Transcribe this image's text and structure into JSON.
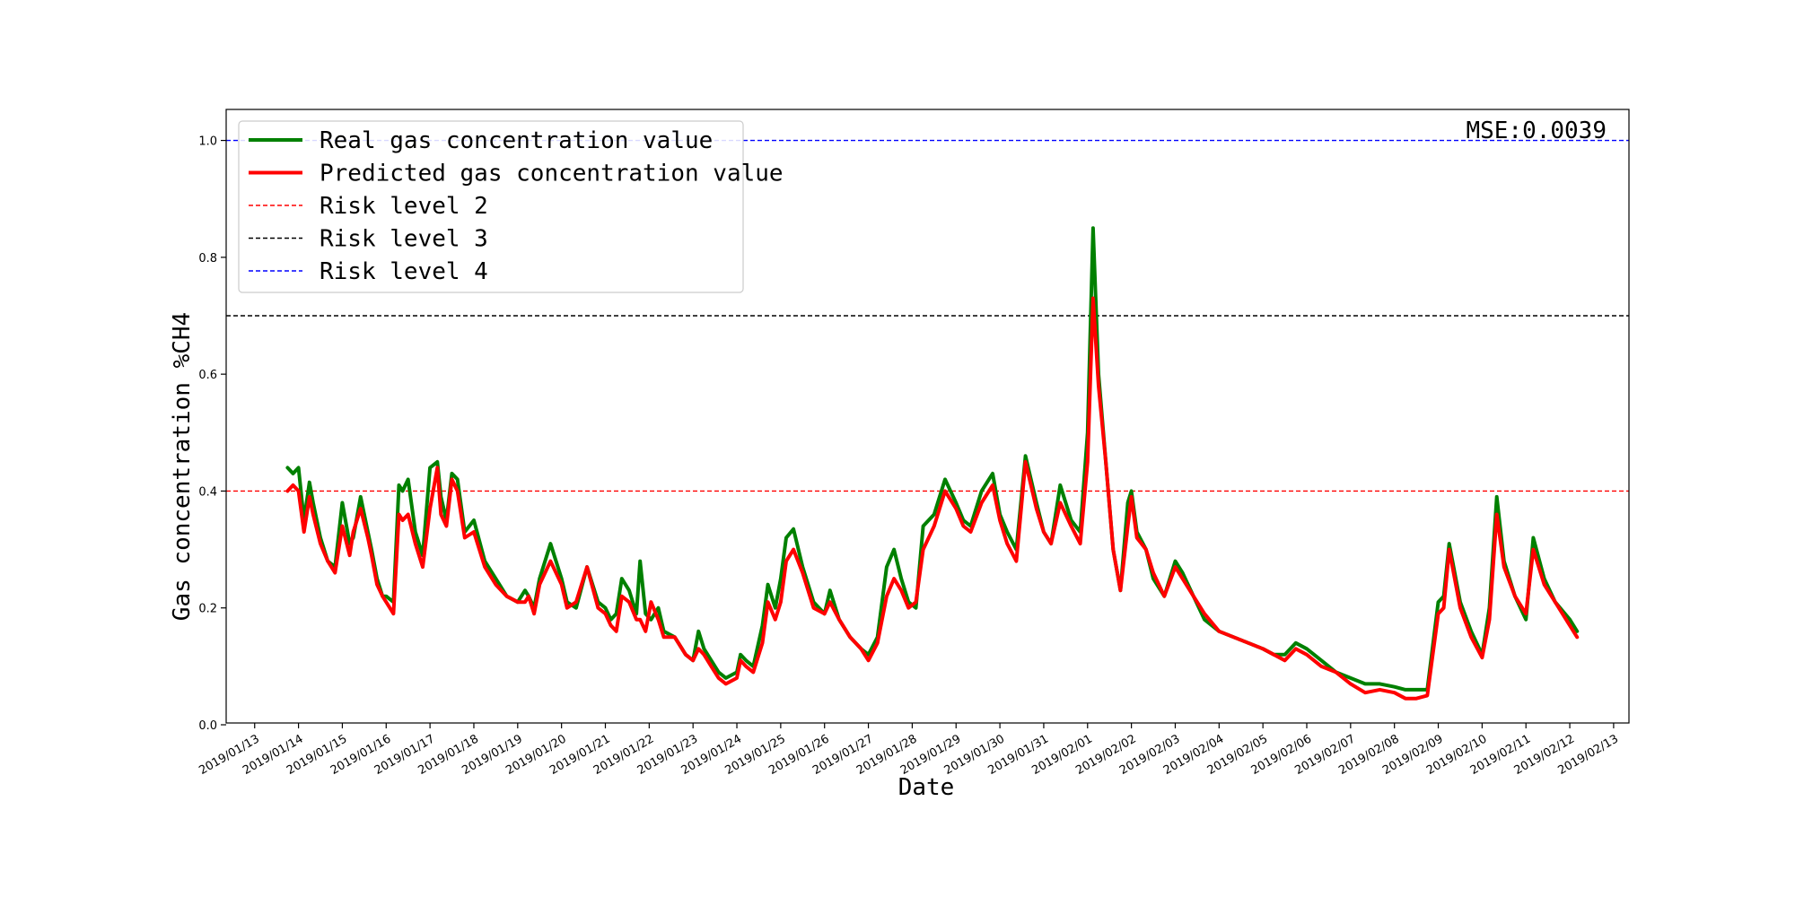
{
  "chart_data": {
    "type": "line",
    "xlabel": "Date",
    "ylabel": "Gas concentration %CH4",
    "annotation": "MSE:0.0039",
    "xlim": [
      "2019/01/13",
      "2019/02/13"
    ],
    "ylim": [
      0.0,
      1.05
    ],
    "y_ticks": [
      "0.0",
      "0.2",
      "0.4",
      "0.6",
      "0.8",
      "1.0"
    ],
    "x_ticks": [
      "2019/01/13",
      "2019/01/14",
      "2019/01/15",
      "2019/01/16",
      "2019/01/17",
      "2019/01/18",
      "2019/01/19",
      "2019/01/20",
      "2019/01/21",
      "2019/01/22",
      "2019/01/23",
      "2019/01/24",
      "2019/01/25",
      "2019/01/26",
      "2019/01/27",
      "2019/01/28",
      "2019/01/29",
      "2019/01/30",
      "2019/01/31",
      "2019/02/01",
      "2019/02/02",
      "2019/02/03",
      "2019/02/04",
      "2019/02/05",
      "2019/02/06",
      "2019/02/07",
      "2019/02/08",
      "2019/02/09",
      "2019/02/10",
      "2019/02/11",
      "2019/02/12",
      "2019/02/13"
    ],
    "grid": false,
    "legend_position": "upper-left",
    "thresholds": [
      {
        "name": "Risk level 2",
        "value": 0.4,
        "color": "#ff0000"
      },
      {
        "name": "Risk level 3",
        "value": 0.7,
        "color": "#000000"
      },
      {
        "name": "Risk level 4",
        "value": 1.0,
        "color": "#0000ff"
      }
    ],
    "series": [
      {
        "name": "Real gas concentration value",
        "color": "#008000",
        "x": [
          "2019/01/13 18:00",
          "2019/01/13 21:00",
          "2019/01/14 00:00",
          "2019/01/14 03:00",
          "2019/01/14 06:00",
          "2019/01/14 08:00",
          "2019/01/14 12:00",
          "2019/01/14 16:00",
          "2019/01/14 20:00",
          "2019/01/15 00:00",
          "2019/01/15 04:00",
          "2019/01/15 06:00",
          "2019/01/15 10:00",
          "2019/01/15 14:00",
          "2019/01/15 16:00",
          "2019/01/15 19:00",
          "2019/01/15 22:00",
          "2019/01/16 00:00",
          "2019/01/16 04:00",
          "2019/01/16 07:00",
          "2019/01/16 09:00",
          "2019/01/16 12:00",
          "2019/01/16 16:00",
          "2019/01/16 20:00",
          "2019/01/17 00:00",
          "2019/01/17 04:00",
          "2019/01/17 06:00",
          "2019/01/17 09:00",
          "2019/01/17 12:00",
          "2019/01/17 15:00",
          "2019/01/17 19:00",
          "2019/01/18 00:00",
          "2019/01/18 06:00",
          "2019/01/18 12:00",
          "2019/01/18 18:00",
          "2019/01/19 00:00",
          "2019/01/19 04:00",
          "2019/01/19 06:00",
          "2019/01/19 09:00",
          "2019/01/19 12:00",
          "2019/01/19 18:00",
          "2019/01/20 00:00",
          "2019/01/20 03:00",
          "2019/01/20 08:00",
          "2019/01/20 14:00",
          "2019/01/20 20:00",
          "2019/01/21 00:00",
          "2019/01/21 03:00",
          "2019/01/21 06:00",
          "2019/01/21 09:00",
          "2019/01/21 13:00",
          "2019/01/21 17:00",
          "2019/01/21 19:00",
          "2019/01/21 22:00",
          "2019/01/22 01:00",
          "2019/01/22 05:00",
          "2019/01/22 08:00",
          "2019/01/22 14:00",
          "2019/01/22 20:00",
          "2019/01/23 00:00",
          "2019/01/23 03:00",
          "2019/01/23 06:00",
          "2019/01/23 10:00",
          "2019/01/23 14:00",
          "2019/01/23 18:00",
          "2019/01/24 00:00",
          "2019/01/24 02:00",
          "2019/01/24 05:00",
          "2019/01/24 09:00",
          "2019/01/24 14:00",
          "2019/01/24 17:00",
          "2019/01/24 21:00",
          "2019/01/25 00:00",
          "2019/01/25 03:00",
          "2019/01/25 07:00",
          "2019/01/25 12:00",
          "2019/01/25 18:00",
          "2019/01/26 00:00",
          "2019/01/26 03:00",
          "2019/01/26 08:00",
          "2019/01/26 14:00",
          "2019/01/26 20:00",
          "2019/01/27 00:00",
          "2019/01/27 05:00",
          "2019/01/27 10:00",
          "2019/01/27 14:00",
          "2019/01/27 18:00",
          "2019/01/27 22:00",
          "2019/01/28 02:00",
          "2019/01/28 06:00",
          "2019/01/28 12:00",
          "2019/01/28 18:00",
          "2019/01/29 00:00",
          "2019/01/29 04:00",
          "2019/01/29 08:00",
          "2019/01/29 14:00",
          "2019/01/29 20:00",
          "2019/01/30 00:00",
          "2019/01/30 04:00",
          "2019/01/30 09:00",
          "2019/01/30 14:00",
          "2019/01/30 20:00",
          "2019/01/31 00:00",
          "2019/01/31 04:00",
          "2019/01/31 09:00",
          "2019/01/31 15:00",
          "2019/01/31 20:00",
          "2019/02/01 00:00",
          "2019/02/01 03:00",
          "2019/02/01 06:00",
          "2019/02/01 10:00",
          "2019/02/01 14:00",
          "2019/02/01 18:00",
          "2019/02/01 22:00",
          "2019/02/02 00:00",
          "2019/02/02 03:00",
          "2019/02/02 08:00",
          "2019/02/02 12:00",
          "2019/02/02 18:00",
          "2019/02/03 00:00",
          "2019/02/03 04:00",
          "2019/02/03 10:00",
          "2019/02/03 16:00",
          "2019/02/04 00:00",
          "2019/02/04 08:00",
          "2019/02/04 16:00",
          "2019/02/05 00:00",
          "2019/02/05 06:00",
          "2019/02/05 12:00",
          "2019/02/05 18:00",
          "2019/02/06 00:00",
          "2019/02/06 08:00",
          "2019/02/06 16:00",
          "2019/02/07 00:00",
          "2019/02/07 08:00",
          "2019/02/07 16:00",
          "2019/02/08 00:00",
          "2019/02/08 06:00",
          "2019/02/08 12:00",
          "2019/02/08 18:00",
          "2019/02/09 00:00",
          "2019/02/09 03:00",
          "2019/02/09 06:00",
          "2019/02/09 12:00",
          "2019/02/09 18:00",
          "2019/02/10 00:00",
          "2019/02/10 04:00",
          "2019/02/10 08:00",
          "2019/02/10 12:00",
          "2019/02/10 18:00",
          "2019/02/11 00:00",
          "2019/02/11 04:00",
          "2019/02/11 10:00",
          "2019/02/11 16:00",
          "2019/02/12 00:00",
          "2019/02/12 04:00"
        ],
        "y": [
          0.44,
          0.43,
          0.44,
          0.35,
          0.415,
          0.38,
          0.32,
          0.28,
          0.27,
          0.38,
          0.31,
          0.32,
          0.39,
          0.33,
          0.3,
          0.25,
          0.22,
          0.22,
          0.21,
          0.41,
          0.4,
          0.42,
          0.33,
          0.29,
          0.44,
          0.45,
          0.39,
          0.35,
          0.43,
          0.42,
          0.33,
          0.35,
          0.28,
          0.25,
          0.22,
          0.21,
          0.23,
          0.22,
          0.2,
          0.25,
          0.31,
          0.25,
          0.21,
          0.2,
          0.27,
          0.21,
          0.2,
          0.18,
          0.19,
          0.25,
          0.23,
          0.19,
          0.28,
          0.19,
          0.18,
          0.2,
          0.16,
          0.15,
          0.12,
          0.11,
          0.16,
          0.13,
          0.11,
          0.09,
          0.08,
          0.09,
          0.12,
          0.11,
          0.1,
          0.17,
          0.24,
          0.2,
          0.25,
          0.32,
          0.335,
          0.27,
          0.21,
          0.19,
          0.23,
          0.18,
          0.15,
          0.13,
          0.12,
          0.15,
          0.27,
          0.3,
          0.25,
          0.21,
          0.2,
          0.34,
          0.36,
          0.42,
          0.38,
          0.35,
          0.34,
          0.4,
          0.43,
          0.36,
          0.33,
          0.3,
          0.46,
          0.38,
          0.33,
          0.31,
          0.41,
          0.35,
          0.33,
          0.5,
          0.85,
          0.6,
          0.45,
          0.3,
          0.23,
          0.38,
          0.4,
          0.33,
          0.3,
          0.25,
          0.22,
          0.28,
          0.26,
          0.22,
          0.18,
          0.16,
          0.15,
          0.14,
          0.13,
          0.12,
          0.12,
          0.14,
          0.13,
          0.11,
          0.09,
          0.08,
          0.07,
          0.07,
          0.065,
          0.06,
          0.06,
          0.06,
          0.21,
          0.22,
          0.31,
          0.21,
          0.16,
          0.12,
          0.2,
          0.39,
          0.28,
          0.22,
          0.18,
          0.32,
          0.25,
          0.21,
          0.18,
          0.16
        ]
      },
      {
        "name": "Predicted gas concentration value",
        "color": "#ff0000",
        "x": [
          "2019/01/13 18:00",
          "2019/01/13 21:00",
          "2019/01/14 00:00",
          "2019/01/14 03:00",
          "2019/01/14 06:00",
          "2019/01/14 08:00",
          "2019/01/14 12:00",
          "2019/01/14 16:00",
          "2019/01/14 20:00",
          "2019/01/15 00:00",
          "2019/01/15 04:00",
          "2019/01/15 06:00",
          "2019/01/15 10:00",
          "2019/01/15 14:00",
          "2019/01/15 16:00",
          "2019/01/15 19:00",
          "2019/01/15 22:00",
          "2019/01/16 00:00",
          "2019/01/16 04:00",
          "2019/01/16 07:00",
          "2019/01/16 09:00",
          "2019/01/16 12:00",
          "2019/01/16 16:00",
          "2019/01/16 20:00",
          "2019/01/17 00:00",
          "2019/01/17 04:00",
          "2019/01/17 06:00",
          "2019/01/17 09:00",
          "2019/01/17 12:00",
          "2019/01/17 15:00",
          "2019/01/17 19:00",
          "2019/01/18 00:00",
          "2019/01/18 06:00",
          "2019/01/18 12:00",
          "2019/01/18 18:00",
          "2019/01/19 00:00",
          "2019/01/19 04:00",
          "2019/01/19 06:00",
          "2019/01/19 09:00",
          "2019/01/19 12:00",
          "2019/01/19 18:00",
          "2019/01/20 00:00",
          "2019/01/20 03:00",
          "2019/01/20 08:00",
          "2019/01/20 14:00",
          "2019/01/20 20:00",
          "2019/01/21 00:00",
          "2019/01/21 03:00",
          "2019/01/21 06:00",
          "2019/01/21 09:00",
          "2019/01/21 13:00",
          "2019/01/21 17:00",
          "2019/01/21 19:00",
          "2019/01/21 22:00",
          "2019/01/22 01:00",
          "2019/01/22 05:00",
          "2019/01/22 08:00",
          "2019/01/22 14:00",
          "2019/01/22 20:00",
          "2019/01/23 00:00",
          "2019/01/23 03:00",
          "2019/01/23 06:00",
          "2019/01/23 10:00",
          "2019/01/23 14:00",
          "2019/01/23 18:00",
          "2019/01/24 00:00",
          "2019/01/24 02:00",
          "2019/01/24 05:00",
          "2019/01/24 09:00",
          "2019/01/24 14:00",
          "2019/01/24 17:00",
          "2019/01/24 21:00",
          "2019/01/25 00:00",
          "2019/01/25 03:00",
          "2019/01/25 07:00",
          "2019/01/25 12:00",
          "2019/01/25 18:00",
          "2019/01/26 00:00",
          "2019/01/26 03:00",
          "2019/01/26 08:00",
          "2019/01/26 14:00",
          "2019/01/26 20:00",
          "2019/01/27 00:00",
          "2019/01/27 05:00",
          "2019/01/27 10:00",
          "2019/01/27 14:00",
          "2019/01/27 18:00",
          "2019/01/27 22:00",
          "2019/01/28 02:00",
          "2019/01/28 06:00",
          "2019/01/28 12:00",
          "2019/01/28 18:00",
          "2019/01/29 00:00",
          "2019/01/29 04:00",
          "2019/01/29 08:00",
          "2019/01/29 14:00",
          "2019/01/29 20:00",
          "2019/01/30 00:00",
          "2019/01/30 04:00",
          "2019/01/30 09:00",
          "2019/01/30 14:00",
          "2019/01/30 20:00",
          "2019/01/31 00:00",
          "2019/01/31 04:00",
          "2019/01/31 09:00",
          "2019/01/31 15:00",
          "2019/01/31 20:00",
          "2019/02/01 00:00",
          "2019/02/01 03:00",
          "2019/02/01 06:00",
          "2019/02/01 10:00",
          "2019/02/01 14:00",
          "2019/02/01 18:00",
          "2019/02/01 22:00",
          "2019/02/02 00:00",
          "2019/02/02 03:00",
          "2019/02/02 08:00",
          "2019/02/02 12:00",
          "2019/02/02 18:00",
          "2019/02/03 00:00",
          "2019/02/03 04:00",
          "2019/02/03 10:00",
          "2019/02/03 16:00",
          "2019/02/04 00:00",
          "2019/02/04 08:00",
          "2019/02/04 16:00",
          "2019/02/05 00:00",
          "2019/02/05 06:00",
          "2019/02/05 12:00",
          "2019/02/05 18:00",
          "2019/02/06 00:00",
          "2019/02/06 08:00",
          "2019/02/06 16:00",
          "2019/02/07 00:00",
          "2019/02/07 08:00",
          "2019/02/07 16:00",
          "2019/02/08 00:00",
          "2019/02/08 06:00",
          "2019/02/08 12:00",
          "2019/02/08 18:00",
          "2019/02/09 00:00",
          "2019/02/09 03:00",
          "2019/02/09 06:00",
          "2019/02/09 12:00",
          "2019/02/09 18:00",
          "2019/02/10 00:00",
          "2019/02/10 04:00",
          "2019/02/10 08:00",
          "2019/02/10 12:00",
          "2019/02/10 18:00",
          "2019/02/11 00:00",
          "2019/02/11 04:00",
          "2019/02/11 10:00",
          "2019/02/11 16:00",
          "2019/02/12 00:00",
          "2019/02/12 04:00"
        ],
        "y": [
          0.4,
          0.41,
          0.4,
          0.33,
          0.39,
          0.36,
          0.31,
          0.28,
          0.26,
          0.34,
          0.29,
          0.33,
          0.37,
          0.32,
          0.29,
          0.24,
          0.22,
          0.21,
          0.19,
          0.36,
          0.35,
          0.36,
          0.31,
          0.27,
          0.37,
          0.44,
          0.36,
          0.34,
          0.42,
          0.4,
          0.32,
          0.33,
          0.27,
          0.24,
          0.22,
          0.21,
          0.21,
          0.22,
          0.19,
          0.24,
          0.28,
          0.24,
          0.2,
          0.21,
          0.27,
          0.2,
          0.19,
          0.17,
          0.16,
          0.22,
          0.21,
          0.18,
          0.18,
          0.16,
          0.21,
          0.18,
          0.15,
          0.15,
          0.12,
          0.11,
          0.13,
          0.12,
          0.1,
          0.08,
          0.07,
          0.08,
          0.11,
          0.1,
          0.09,
          0.14,
          0.21,
          0.18,
          0.21,
          0.28,
          0.3,
          0.26,
          0.2,
          0.19,
          0.21,
          0.18,
          0.15,
          0.13,
          0.11,
          0.14,
          0.22,
          0.25,
          0.23,
          0.2,
          0.21,
          0.3,
          0.34,
          0.4,
          0.37,
          0.34,
          0.33,
          0.38,
          0.41,
          0.35,
          0.31,
          0.28,
          0.45,
          0.37,
          0.33,
          0.31,
          0.38,
          0.34,
          0.31,
          0.45,
          0.73,
          0.58,
          0.45,
          0.3,
          0.23,
          0.34,
          0.39,
          0.32,
          0.3,
          0.26,
          0.22,
          0.27,
          0.25,
          0.22,
          0.19,
          0.16,
          0.15,
          0.14,
          0.13,
          0.12,
          0.11,
          0.13,
          0.12,
          0.1,
          0.09,
          0.07,
          0.055,
          0.06,
          0.055,
          0.045,
          0.045,
          0.05,
          0.19,
          0.2,
          0.3,
          0.2,
          0.15,
          0.115,
          0.18,
          0.36,
          0.27,
          0.22,
          0.19,
          0.3,
          0.24,
          0.21,
          0.17,
          0.15
        ]
      }
    ]
  }
}
